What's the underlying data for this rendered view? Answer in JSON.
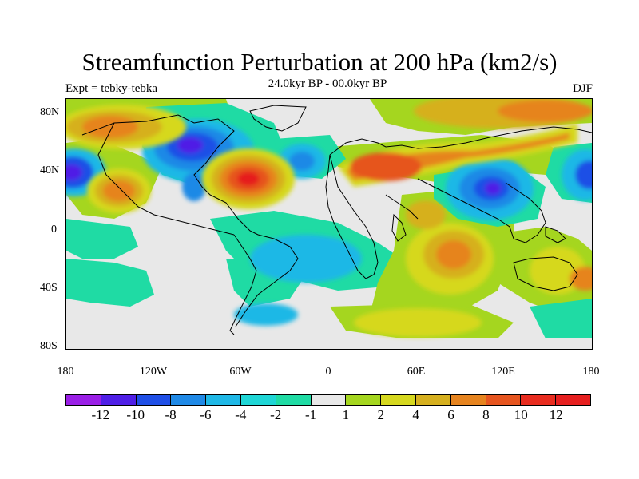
{
  "title": "Streamfunction Perturbation at 200 hPa (km2/s)",
  "left_label": "Expt = tebky-tebka",
  "center_label": "24.0kyr BP - 00.0kyr BP",
  "right_label": "DJF",
  "y_ticks": [
    "80N",
    "40N",
    "0",
    "40S",
    "80S"
  ],
  "x_ticks": [
    "180",
    "120W",
    "60W",
    "0",
    "60E",
    "120E",
    "180"
  ],
  "colorbar": {
    "labels": [
      "-12",
      "-10",
      "-8",
      "-6",
      "-4",
      "-2",
      "-1",
      "1",
      "2",
      "4",
      "6",
      "8",
      "10",
      "12"
    ],
    "colors": [
      "#9a1fe6",
      "#4f1fe6",
      "#1f4fe6",
      "#1f89e6",
      "#1fb8e6",
      "#1fd6d6",
      "#1fdba4",
      "#e8e8e8",
      "#a5d61f",
      "#d6d81f",
      "#d6b01f",
      "#e6841f",
      "#e6551f",
      "#e82c1f",
      "#e61f1f"
    ]
  },
  "colors": {
    "fill_neutral": "#e8e8e8",
    "coast": "#000000"
  }
}
